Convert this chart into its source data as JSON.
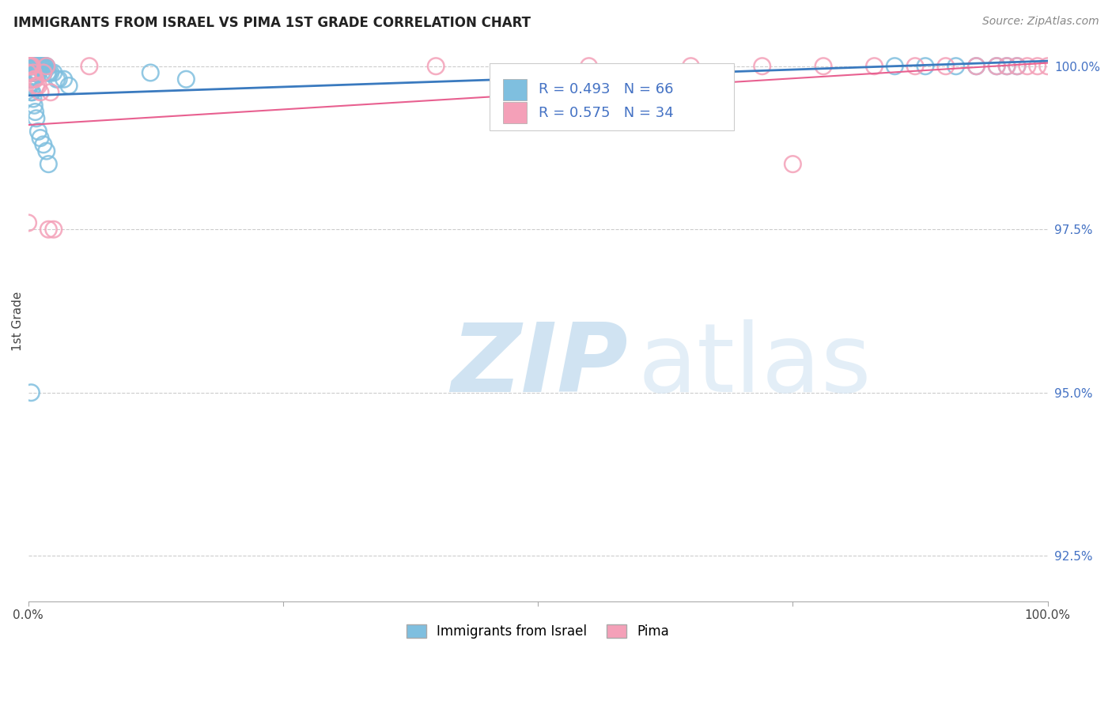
{
  "title": "IMMIGRANTS FROM ISRAEL VS PIMA 1ST GRADE CORRELATION CHART",
  "source": "Source: ZipAtlas.com",
  "ylabel": "1st Grade",
  "legend_label1": "Immigrants from Israel",
  "legend_label2": "Pima",
  "R1": 0.493,
  "N1": 66,
  "R2": 0.575,
  "N2": 34,
  "color_blue": "#7fbfdf",
  "color_pink": "#f4a0b8",
  "color_blue_line": "#3a7abf",
  "color_pink_line": "#e86090",
  "color_text_blue": "#4472c4",
  "xlim": [
    0.0,
    1.0
  ],
  "ylim": [
    0.918,
    1.004
  ],
  "yticks": [
    1.0,
    0.975,
    0.95,
    0.925
  ],
  "ytick_labels": [
    "100.0%",
    "97.5%",
    "95.0%",
    "92.5%"
  ],
  "blue_x": [
    0.001,
    0.001,
    0.001,
    0.002,
    0.002,
    0.002,
    0.003,
    0.003,
    0.003,
    0.004,
    0.004,
    0.004,
    0.005,
    0.005,
    0.005,
    0.006,
    0.006,
    0.007,
    0.007,
    0.008,
    0.008,
    0.009,
    0.009,
    0.01,
    0.01,
    0.011,
    0.012,
    0.013,
    0.014,
    0.015,
    0.016,
    0.017,
    0.018,
    0.019,
    0.02,
    0.022,
    0.025,
    0.028,
    0.03,
    0.035,
    0.04,
    0.0,
    0.0,
    0.001,
    0.002,
    0.003,
    0.004,
    0.005,
    0.006,
    0.007,
    0.008,
    0.01,
    0.012,
    0.015,
    0.018,
    0.02,
    0.12,
    0.155,
    0.85,
    0.88,
    0.91,
    0.93,
    0.95,
    0.96,
    0.97,
    0.003
  ],
  "blue_y": [
    1.0,
    1.0,
    0.999,
    1.0,
    0.999,
    0.998,
    1.0,
    0.999,
    0.998,
    1.0,
    0.999,
    0.998,
    1.0,
    0.999,
    0.998,
    1.0,
    0.999,
    1.0,
    0.999,
    1.0,
    0.999,
    1.0,
    0.999,
    1.0,
    0.999,
    1.0,
    1.0,
    1.0,
    1.0,
    1.0,
    1.0,
    1.0,
    1.0,
    0.999,
    0.999,
    0.999,
    0.999,
    0.998,
    0.998,
    0.998,
    0.997,
    0.998,
    0.997,
    0.997,
    0.997,
    0.996,
    0.996,
    0.995,
    0.994,
    0.993,
    0.992,
    0.99,
    0.989,
    0.988,
    0.987,
    0.985,
    0.999,
    0.998,
    1.0,
    1.0,
    1.0,
    1.0,
    1.0,
    1.0,
    1.0,
    0.95
  ],
  "pink_x": [
    0.0,
    0.001,
    0.002,
    0.003,
    0.004,
    0.005,
    0.006,
    0.007,
    0.008,
    0.01,
    0.012,
    0.015,
    0.018,
    0.022,
    0.06,
    0.4,
    0.55,
    0.65,
    0.72,
    0.78,
    0.83,
    0.87,
    0.9,
    0.93,
    0.95,
    0.96,
    0.97,
    0.98,
    0.99,
    1.0,
    0.75,
    0.025,
    0.02,
    0.0
  ],
  "pink_y": [
    0.999,
    1.0,
    1.0,
    1.0,
    1.0,
    0.999,
    0.998,
    0.998,
    0.997,
    0.997,
    0.996,
    0.999,
    1.0,
    0.996,
    1.0,
    1.0,
    1.0,
    1.0,
    1.0,
    1.0,
    1.0,
    1.0,
    1.0,
    1.0,
    1.0,
    1.0,
    1.0,
    1.0,
    1.0,
    1.0,
    0.985,
    0.975,
    0.975,
    0.976
  ],
  "blue_trendline_x": [
    0.0,
    1.0
  ],
  "blue_trendline_y": [
    0.9955,
    1.0008
  ],
  "pink_trendline_x": [
    0.0,
    1.0
  ],
  "pink_trendline_y": [
    0.991,
    1.0005
  ]
}
